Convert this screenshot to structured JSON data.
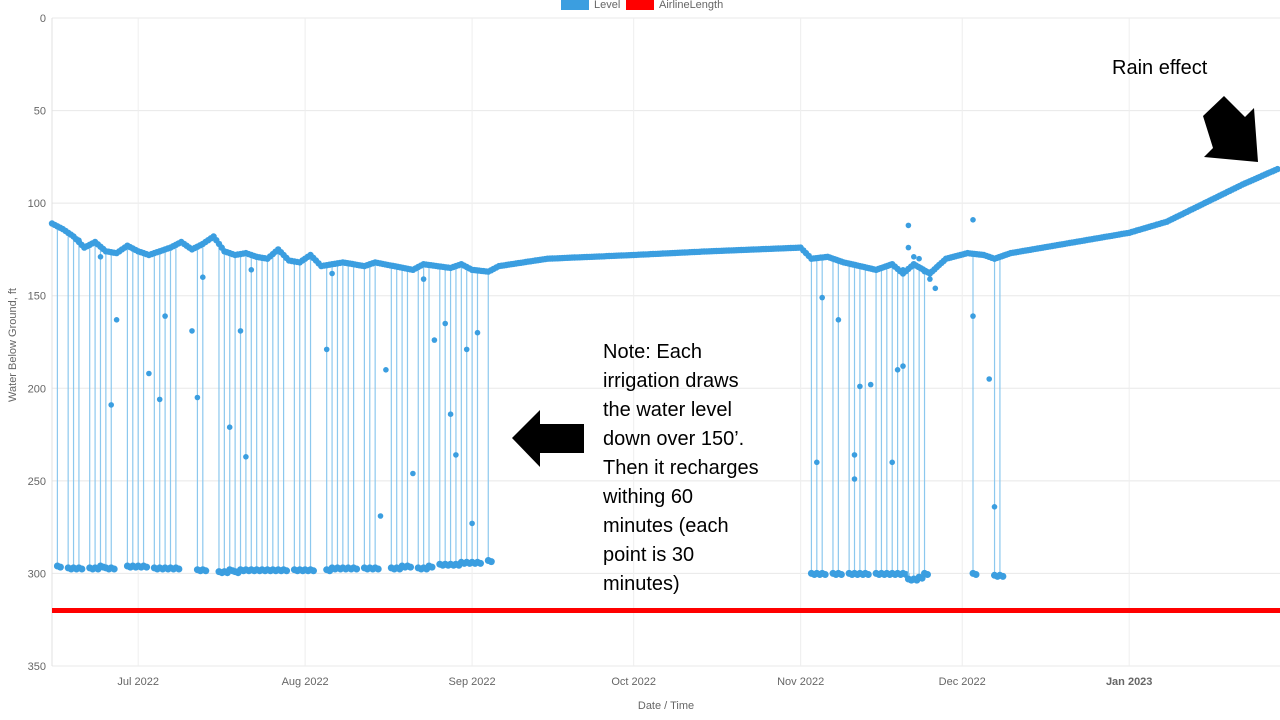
{
  "chart_data": {
    "type": "line",
    "xlabel": "Date / Time",
    "ylabel": "Water Below Ground, ft",
    "y_reversed": true,
    "ylim": [
      0,
      350
    ],
    "yticks": [
      "0",
      "50",
      "100",
      "150",
      "200",
      "250",
      "300",
      "350"
    ],
    "xrange": [
      "2022-06-15",
      "2023-01-29"
    ],
    "xticks": [
      {
        "label": "Jul 2022",
        "date": "2022-07-01",
        "highlight": false
      },
      {
        "label": "Aug 2022",
        "date": "2022-08-01",
        "highlight": false
      },
      {
        "label": "Sep 2022",
        "date": "2022-09-01",
        "highlight": false
      },
      {
        "label": "Oct 2022",
        "date": "2022-10-01",
        "highlight": false
      },
      {
        "label": "Nov 2022",
        "date": "2022-11-01",
        "highlight": false
      },
      {
        "label": "Dec 2022",
        "date": "2022-12-01",
        "highlight": false
      },
      {
        "label": "Jan 2023",
        "date": "2023-01-01",
        "highlight": true
      }
    ],
    "grid": true,
    "legend_position": "top-center",
    "series": [
      {
        "name": "Level",
        "color": "#3b9ee0",
        "static_levels": [
          [
            "2022-06-15",
            111
          ],
          [
            "2022-06-17",
            114
          ],
          [
            "2022-06-19",
            118
          ],
          [
            "2022-06-21",
            124
          ],
          [
            "2022-06-23",
            121
          ],
          [
            "2022-06-25",
            126
          ],
          [
            "2022-06-27",
            127
          ],
          [
            "2022-06-29",
            123
          ],
          [
            "2022-07-01",
            126
          ],
          [
            "2022-07-03",
            128
          ],
          [
            "2022-07-05",
            126
          ],
          [
            "2022-07-07",
            124
          ],
          [
            "2022-07-09",
            121
          ],
          [
            "2022-07-11",
            125
          ],
          [
            "2022-07-13",
            122
          ],
          [
            "2022-07-15",
            118
          ],
          [
            "2022-07-17",
            126
          ],
          [
            "2022-07-19",
            128
          ],
          [
            "2022-07-21",
            127
          ],
          [
            "2022-07-23",
            129
          ],
          [
            "2022-07-25",
            130
          ],
          [
            "2022-07-27",
            125
          ],
          [
            "2022-07-29",
            131
          ],
          [
            "2022-07-31",
            132
          ],
          [
            "2022-08-02",
            128
          ],
          [
            "2022-08-04",
            134
          ],
          [
            "2022-08-06",
            133
          ],
          [
            "2022-08-08",
            132
          ],
          [
            "2022-08-12",
            134
          ],
          [
            "2022-08-14",
            132
          ],
          [
            "2022-08-21",
            136
          ],
          [
            "2022-08-23",
            133
          ],
          [
            "2022-08-28",
            135
          ],
          [
            "2022-08-30",
            133
          ],
          [
            "2022-09-01",
            136
          ],
          [
            "2022-09-04",
            137
          ],
          [
            "2022-09-06",
            134
          ],
          [
            "2022-09-15",
            130
          ],
          [
            "2022-10-01",
            128
          ],
          [
            "2022-10-15",
            126
          ],
          [
            "2022-11-01",
            124
          ],
          [
            "2022-11-03",
            130
          ],
          [
            "2022-11-06",
            129
          ],
          [
            "2022-11-09",
            132
          ],
          [
            "2022-11-12",
            134
          ],
          [
            "2022-11-15",
            136
          ],
          [
            "2022-11-18",
            133
          ],
          [
            "2022-11-20",
            138
          ],
          [
            "2022-11-22",
            133
          ],
          [
            "2022-11-25",
            138
          ],
          [
            "2022-11-28",
            130
          ],
          [
            "2022-12-02",
            127
          ],
          [
            "2022-12-05",
            128
          ],
          [
            "2022-12-07",
            130
          ],
          [
            "2022-12-10",
            127
          ],
          [
            "2022-12-20",
            122
          ],
          [
            "2023-01-01",
            116
          ],
          [
            "2023-01-08",
            110
          ],
          [
            "2023-01-15",
            100
          ],
          [
            "2023-01-22",
            90
          ],
          [
            "2023-01-29",
            81
          ]
        ],
        "irrigation_events": [
          [
            "2022-06-16",
            296
          ],
          [
            "2022-06-18",
            297
          ],
          [
            "2022-06-19",
            297
          ],
          [
            "2022-06-20",
            297
          ],
          [
            "2022-06-22",
            297
          ],
          [
            "2022-06-23",
            297
          ],
          [
            "2022-06-24",
            296
          ],
          [
            "2022-06-25",
            297
          ],
          [
            "2022-06-26",
            297
          ],
          [
            "2022-06-29",
            296
          ],
          [
            "2022-06-30",
            296
          ],
          [
            "2022-07-01",
            296
          ],
          [
            "2022-07-02",
            296
          ],
          [
            "2022-07-04",
            297
          ],
          [
            "2022-07-05",
            297
          ],
          [
            "2022-07-06",
            297
          ],
          [
            "2022-07-07",
            297
          ],
          [
            "2022-07-08",
            297
          ],
          [
            "2022-07-12",
            298
          ],
          [
            "2022-07-13",
            298
          ],
          [
            "2022-07-16",
            299
          ],
          [
            "2022-07-17",
            299
          ],
          [
            "2022-07-18",
            298
          ],
          [
            "2022-07-19",
            299
          ],
          [
            "2022-07-20",
            298
          ],
          [
            "2022-07-21",
            298
          ],
          [
            "2022-07-22",
            298
          ],
          [
            "2022-07-23",
            298
          ],
          [
            "2022-07-24",
            298
          ],
          [
            "2022-07-25",
            298
          ],
          [
            "2022-07-26",
            298
          ],
          [
            "2022-07-27",
            298
          ],
          [
            "2022-07-28",
            298
          ],
          [
            "2022-07-30",
            298
          ],
          [
            "2022-07-31",
            298
          ],
          [
            "2022-08-01",
            298
          ],
          [
            "2022-08-02",
            298
          ],
          [
            "2022-08-05",
            298
          ],
          [
            "2022-08-06",
            297
          ],
          [
            "2022-08-07",
            297
          ],
          [
            "2022-08-08",
            297
          ],
          [
            "2022-08-09",
            297
          ],
          [
            "2022-08-10",
            297
          ],
          [
            "2022-08-12",
            297
          ],
          [
            "2022-08-13",
            297
          ],
          [
            "2022-08-14",
            297
          ],
          [
            "2022-08-17",
            297
          ],
          [
            "2022-08-18",
            297
          ],
          [
            "2022-08-19",
            296
          ],
          [
            "2022-08-20",
            296
          ],
          [
            "2022-08-22",
            297
          ],
          [
            "2022-08-23",
            297
          ],
          [
            "2022-08-24",
            296
          ],
          [
            "2022-08-26",
            295
          ],
          [
            "2022-08-27",
            295
          ],
          [
            "2022-08-28",
            295
          ],
          [
            "2022-08-29",
            295
          ],
          [
            "2022-08-30",
            294
          ],
          [
            "2022-08-31",
            294
          ],
          [
            "2022-09-01",
            294
          ],
          [
            "2022-09-02",
            294
          ],
          [
            "2022-09-04",
            293
          ],
          [
            "2022-11-03",
            300
          ],
          [
            "2022-11-04",
            300
          ],
          [
            "2022-11-05",
            300
          ],
          [
            "2022-11-07",
            300
          ],
          [
            "2022-11-08",
            300
          ],
          [
            "2022-11-10",
            300
          ],
          [
            "2022-11-11",
            300
          ],
          [
            "2022-11-12",
            300
          ],
          [
            "2022-11-13",
            300
          ],
          [
            "2022-11-15",
            300
          ],
          [
            "2022-11-16",
            300
          ],
          [
            "2022-11-17",
            300
          ],
          [
            "2022-11-18",
            300
          ],
          [
            "2022-11-19",
            300
          ],
          [
            "2022-11-20",
            300
          ],
          [
            "2022-11-21",
            303
          ],
          [
            "2022-11-22",
            303
          ],
          [
            "2022-11-23",
            302
          ],
          [
            "2022-11-24",
            300
          ],
          [
            "2022-12-03",
            300
          ],
          [
            "2022-12-07",
            301
          ],
          [
            "2022-12-08",
            301
          ]
        ],
        "outliers": [
          [
            "2022-06-20",
            120
          ],
          [
            "2022-06-24",
            129
          ],
          [
            "2022-06-26",
            209
          ],
          [
            "2022-06-27",
            163
          ],
          [
            "2022-07-03",
            192
          ],
          [
            "2022-07-05",
            206
          ],
          [
            "2022-07-06",
            161
          ],
          [
            "2022-07-11",
            169
          ],
          [
            "2022-07-12",
            205
          ],
          [
            "2022-07-13",
            140
          ],
          [
            "2022-07-18",
            221
          ],
          [
            "2022-07-20",
            169
          ],
          [
            "2022-07-21",
            237
          ],
          [
            "2022-07-22",
            136
          ],
          [
            "2022-08-05",
            179
          ],
          [
            "2022-08-06",
            138
          ],
          [
            "2022-08-15",
            269
          ],
          [
            "2022-08-16",
            190
          ],
          [
            "2022-08-21",
            246
          ],
          [
            "2022-08-23",
            141
          ],
          [
            "2022-08-25",
            174
          ],
          [
            "2022-08-27",
            165
          ],
          [
            "2022-08-28",
            214
          ],
          [
            "2022-08-29",
            236
          ],
          [
            "2022-08-31",
            179
          ],
          [
            "2022-09-01",
            273
          ],
          [
            "2022-09-02",
            170
          ],
          [
            "2022-11-04",
            240
          ],
          [
            "2022-11-05",
            151
          ],
          [
            "2022-11-08",
            163
          ],
          [
            "2022-11-11",
            236
          ],
          [
            "2022-11-11",
            249
          ],
          [
            "2022-11-12",
            199
          ],
          [
            "2022-11-14",
            198
          ],
          [
            "2022-11-18",
            240
          ],
          [
            "2022-11-19",
            190
          ],
          [
            "2022-11-20",
            188
          ],
          [
            "2022-11-20",
            136
          ],
          [
            "2022-11-21",
            112
          ],
          [
            "2022-11-21",
            124
          ],
          [
            "2022-11-22",
            129
          ],
          [
            "2022-11-23",
            130
          ],
          [
            "2022-11-24",
            137
          ],
          [
            "2022-11-25",
            141
          ],
          [
            "2022-11-26",
            146
          ],
          [
            "2022-12-03",
            109
          ],
          [
            "2022-12-03",
            161
          ],
          [
            "2022-12-06",
            195
          ],
          [
            "2022-12-07",
            264
          ]
        ]
      },
      {
        "name": "AirlineLength",
        "color": "#ff0000",
        "values": [
          [
            "2022-06-15",
            320
          ],
          [
            "2023-01-29",
            320
          ]
        ]
      }
    ]
  },
  "annotations": {
    "note": "Note: Each\nirrigation draws\nthe water level\ndown over 150’.\nThen it recharges\nwithing 60\nminutes (each\npoint is 30\nminutes)",
    "rain": "Rain effect"
  }
}
